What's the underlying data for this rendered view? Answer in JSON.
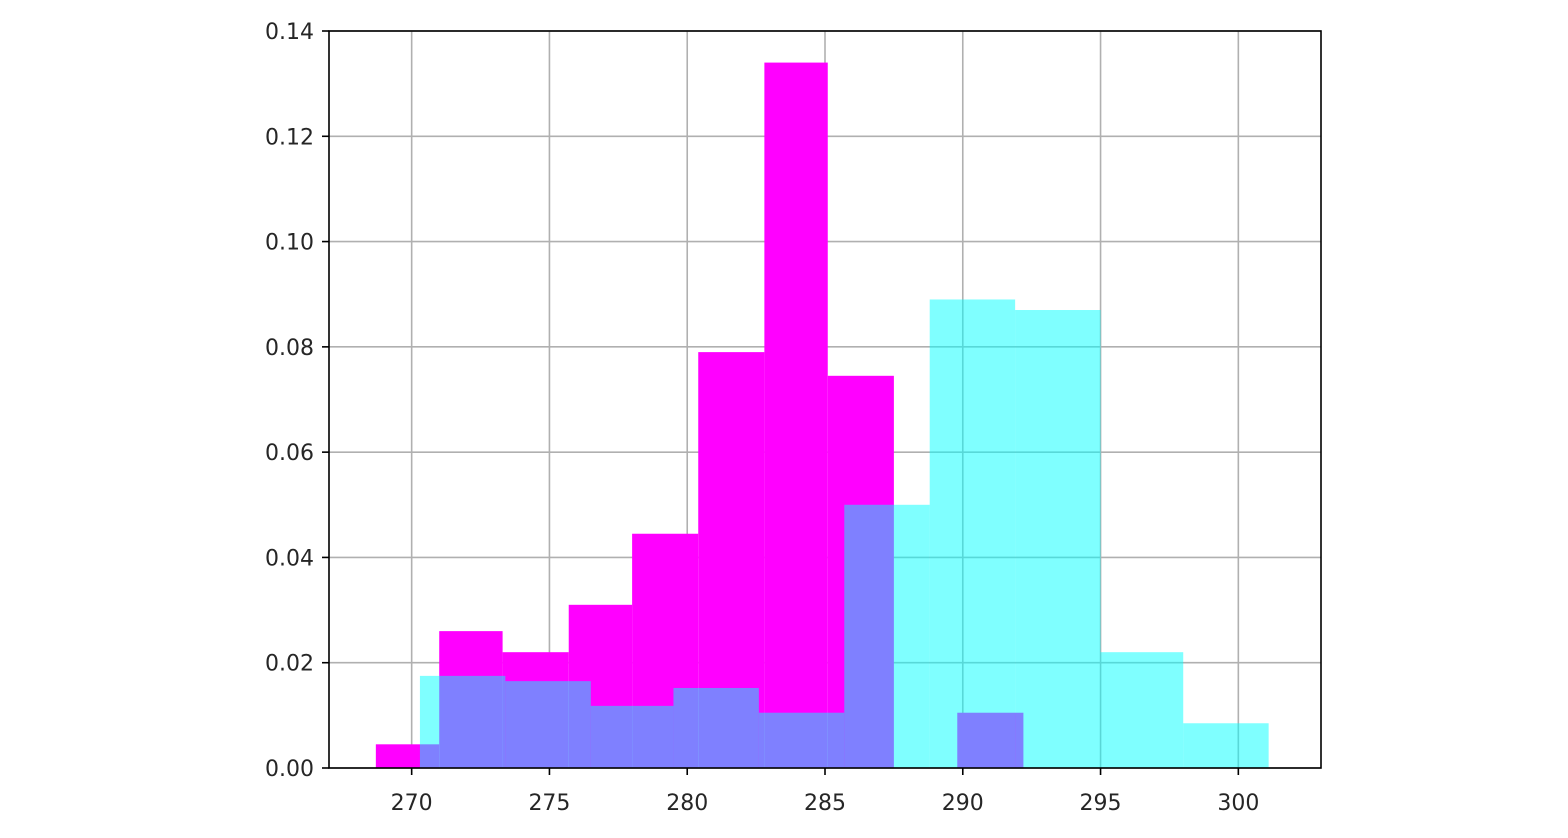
{
  "chart_data": {
    "type": "histogram",
    "title": "",
    "xlabel": "",
    "ylabel": "",
    "xlim": [
      267.0,
      303.0
    ],
    "ylim": [
      0.0,
      0.14
    ],
    "grid": true,
    "xticks": [
      "270",
      "275",
      "280",
      "285",
      "290",
      "295",
      "300"
    ],
    "yticks": [
      "0.00",
      "0.02",
      "0.04",
      "0.06",
      "0.08",
      "0.10",
      "0.12",
      "0.14"
    ],
    "series": [
      {
        "color": "#ff00ff",
        "alpha": 1.0,
        "bins": [
          {
            "x0": 268.7,
            "x1": 271.0,
            "value": 0.0045
          },
          {
            "x0": 271.0,
            "x1": 273.3,
            "value": 0.026
          },
          {
            "x0": 273.3,
            "x1": 275.7,
            "value": 0.022
          },
          {
            "x0": 275.7,
            "x1": 278.0,
            "value": 0.031
          },
          {
            "x0": 278.0,
            "x1": 280.4,
            "value": 0.0445
          },
          {
            "x0": 280.4,
            "x1": 282.8,
            "value": 0.079
          },
          {
            "x0": 282.8,
            "x1": 285.1,
            "value": 0.134
          },
          {
            "x0": 285.1,
            "x1": 287.5,
            "value": 0.0745
          },
          {
            "x0": 287.5,
            "x1": 289.8,
            "value": 0.0
          },
          {
            "x0": 289.8,
            "x1": 292.2,
            "value": 0.0105
          }
        ]
      },
      {
        "color": "#00ffff",
        "alpha": 0.5,
        "bins": [
          {
            "x0": 270.3,
            "x1": 273.4,
            "value": 0.0175
          },
          {
            "x0": 273.4,
            "x1": 276.5,
            "value": 0.0165
          },
          {
            "x0": 276.5,
            "x1": 279.5,
            "value": 0.0118
          },
          {
            "x0": 279.5,
            "x1": 282.6,
            "value": 0.0152
          },
          {
            "x0": 282.6,
            "x1": 285.7,
            "value": 0.0105
          },
          {
            "x0": 285.7,
            "x1": 288.8,
            "value": 0.05
          },
          {
            "x0": 288.8,
            "x1": 291.9,
            "value": 0.089
          },
          {
            "x0": 291.9,
            "x1": 295.0,
            "value": 0.087
          },
          {
            "x0": 295.0,
            "x1": 298.0,
            "value": 0.022
          },
          {
            "x0": 298.0,
            "x1": 301.1,
            "value": 0.0085
          }
        ]
      }
    ]
  }
}
